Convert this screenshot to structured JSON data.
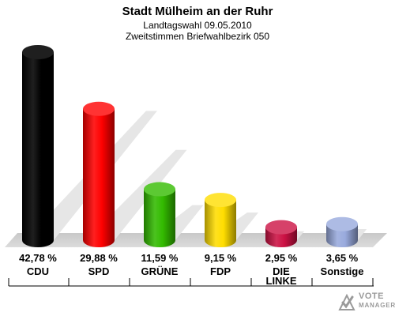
{
  "chart_data": {
    "type": "bar",
    "title": "Stadt Mülheim an der Ruhr",
    "subtitle1": "Landtagswahl 09.05.2010",
    "subtitle2": "Zweitstimmen Briefwahlbezirk 050",
    "categories": [
      "CDU",
      "SPD",
      "GRÜNE",
      "FDP",
      "DIE LINKE",
      "Sonstige"
    ],
    "category_lines": [
      [
        "CDU"
      ],
      [
        "SPD"
      ],
      [
        "GRÜNE"
      ],
      [
        "FDP"
      ],
      [
        "DIE",
        "LINKE"
      ],
      [
        "Sonstige"
      ]
    ],
    "values": [
      42.78,
      29.88,
      11.59,
      9.15,
      2.95,
      3.65
    ],
    "value_labels": [
      "42,78 %",
      "29,88 %",
      "11,59 %",
      "9,15 %",
      "2,95 %",
      "3,65 %"
    ],
    "colors": [
      "#000000",
      "#ff0000",
      "#33bb00",
      "#ffdd00",
      "#cc1144",
      "#99aadd"
    ],
    "ylim": [
      0,
      42.78
    ],
    "grid": false,
    "legend": "none"
  },
  "brand": {
    "line1": "VOTE",
    "line2": "MANAGER",
    "colors": {
      "text": "#9a9a9a",
      "mark": "#9a9a9a"
    }
  }
}
